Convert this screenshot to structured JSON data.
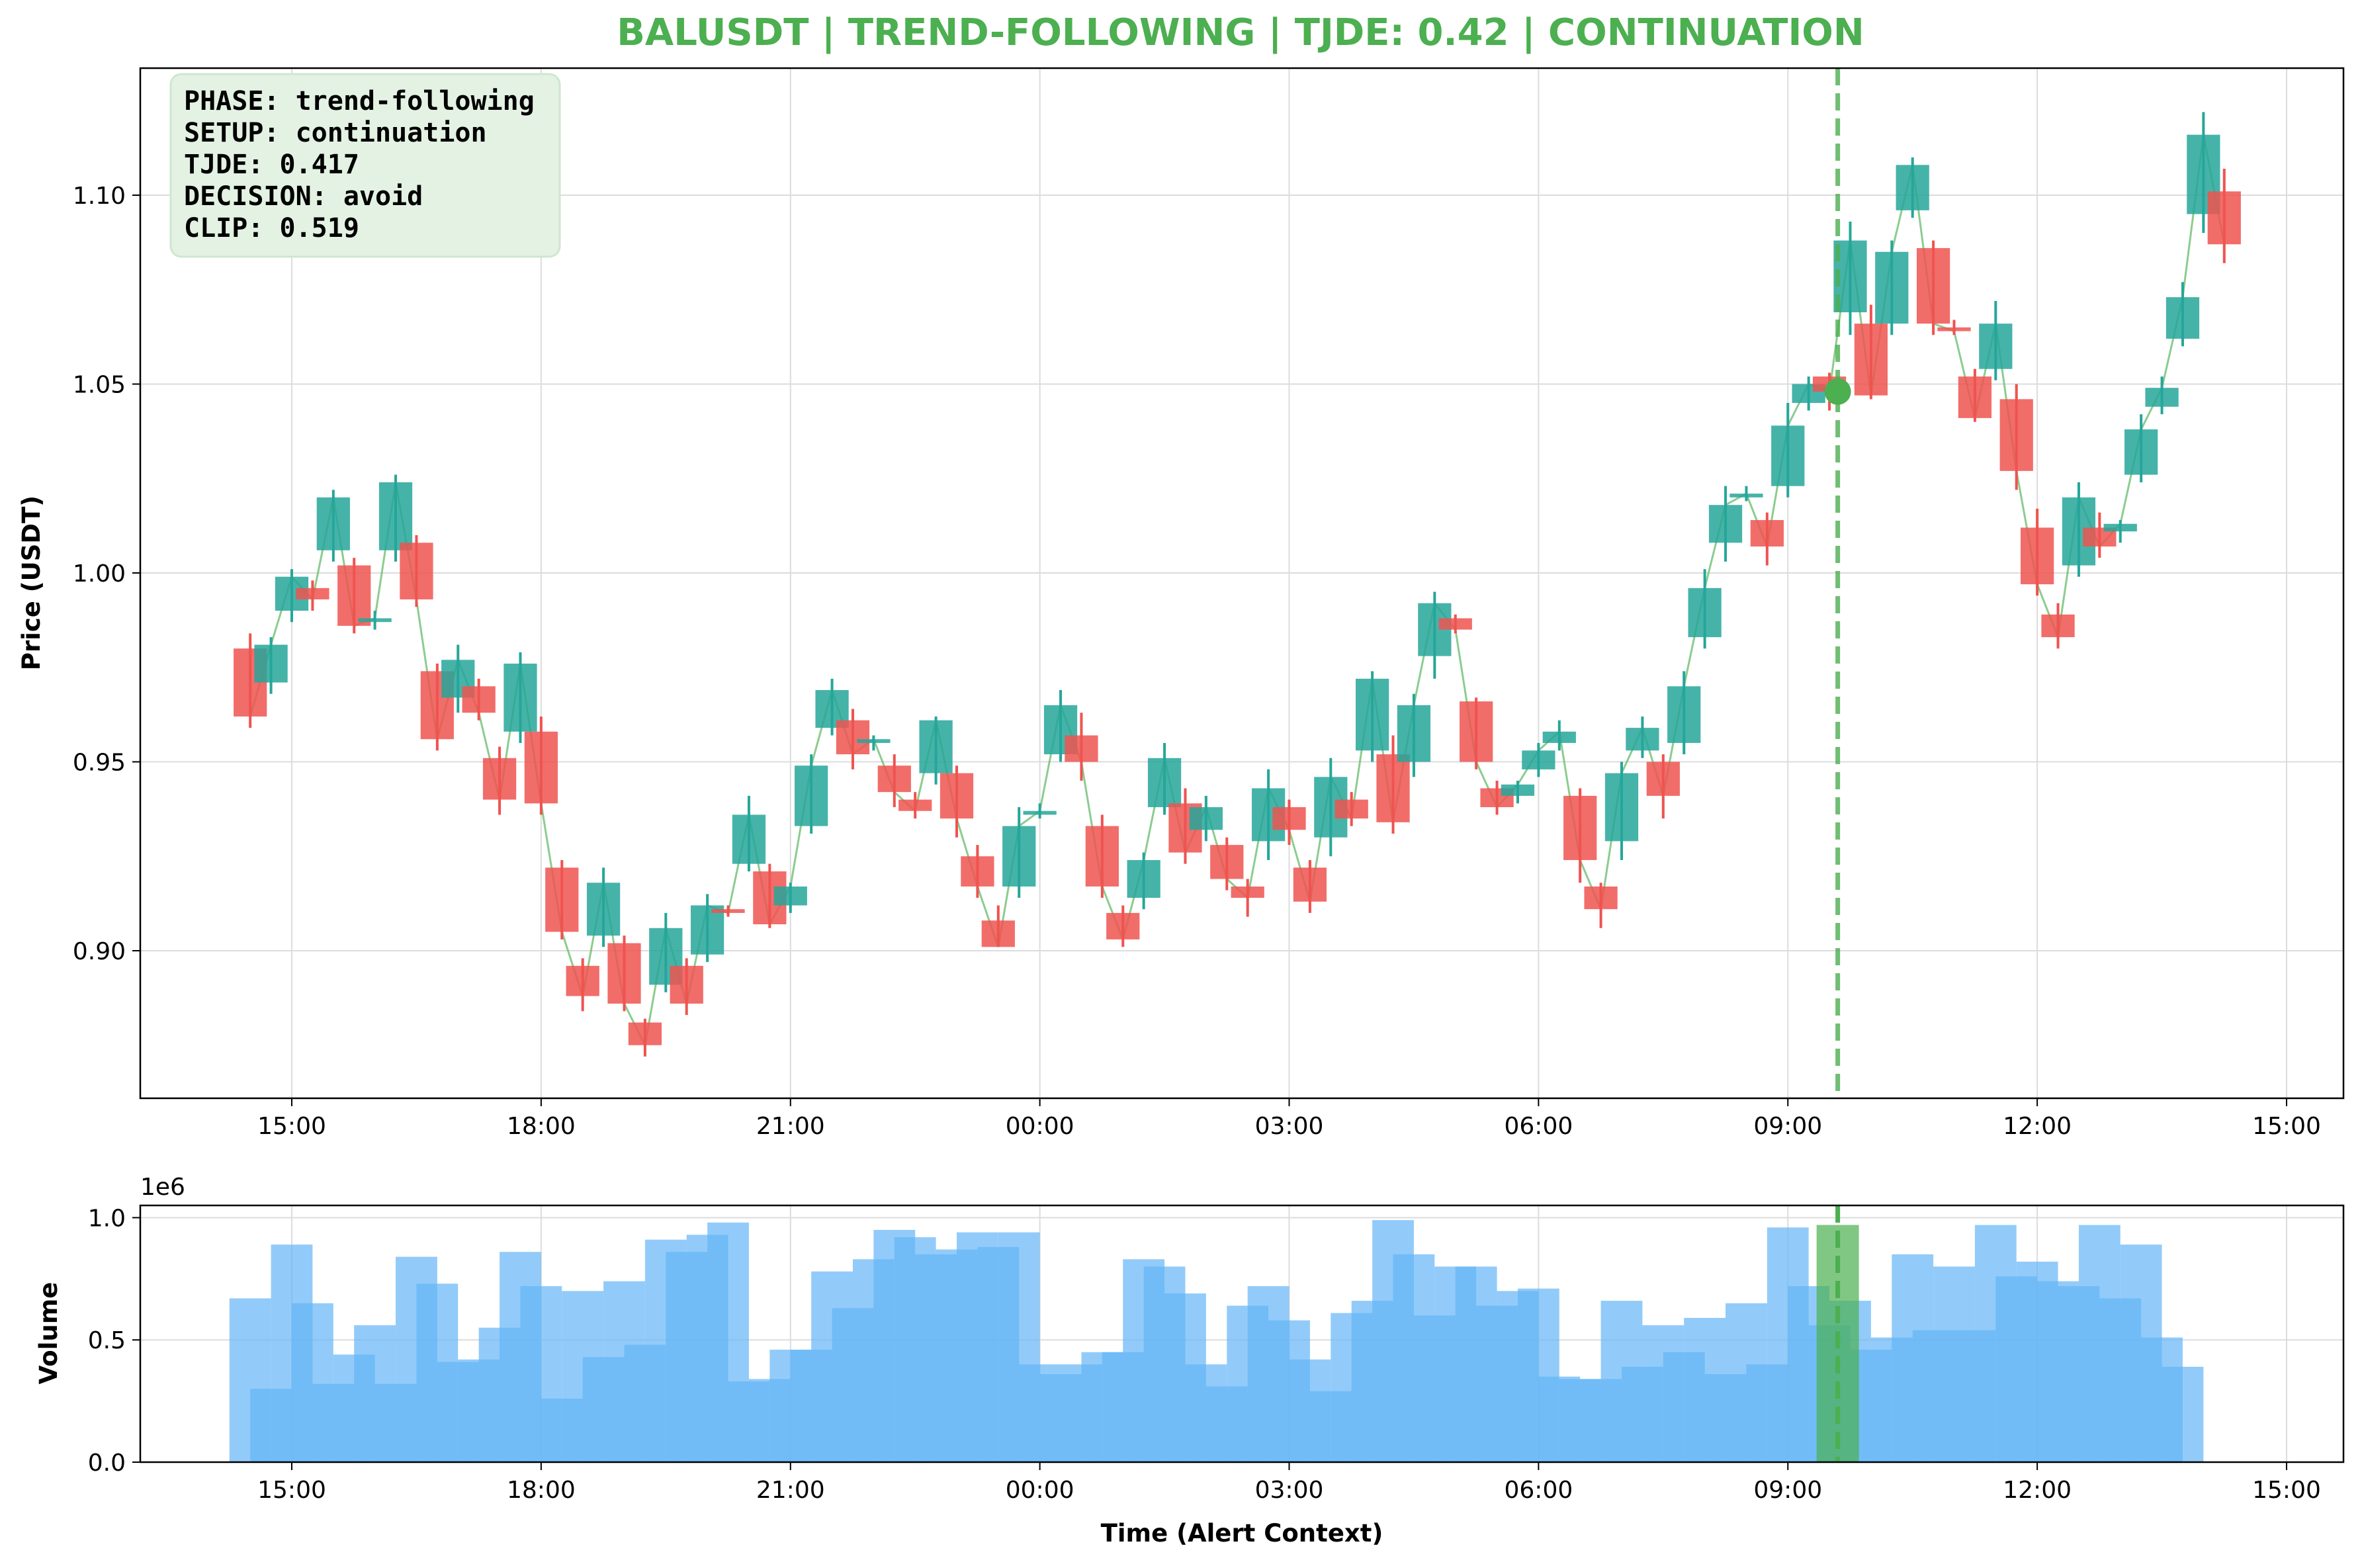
{
  "chart_data": [
    {
      "type": "candlestick",
      "title": "BALUSDT | TREND-FOLLOWING | TJDE: 0.42 | CONTINUATION",
      "title_color": "#4caf50",
      "ylabel": "Price (USDT)",
      "xlabel": "",
      "ylim": [
        0.86,
        1.133
      ],
      "yticks": [
        "0.90",
        "0.95",
        "1.00",
        "1.05",
        "1.10"
      ],
      "xticks": [
        "15:00",
        "18:00",
        "21:00",
        "00:00",
        "03:00",
        "06:00",
        "09:00",
        "12:00",
        "15:00"
      ],
      "grid": true,
      "up_color": "#26a69a",
      "down_color": "#ef5350",
      "close_line_color": "#66bb6a",
      "info_box": {
        "position": "top-left",
        "lines": [
          "PHASE: trend-following",
          "SETUP: continuation",
          "TJDE: 0.417",
          "DECISION: avoid",
          "CLIP: 0.519"
        ]
      },
      "alert": {
        "time": "09:36",
        "price": 1.048,
        "color": "#4caf50"
      },
      "candles": [
        {
          "time": "14:30",
          "open": 0.98,
          "high": 0.984,
          "low": 0.959,
          "close": 0.962
        },
        {
          "time": "14:45",
          "open": 0.971,
          "high": 0.983,
          "low": 0.968,
          "close": 0.981
        },
        {
          "time": "15:00",
          "open": 0.99,
          "high": 1.001,
          "low": 0.987,
          "close": 0.999
        },
        {
          "time": "15:15",
          "open": 0.996,
          "high": 0.998,
          "low": 0.99,
          "close": 0.993
        },
        {
          "time": "15:30",
          "open": 1.006,
          "high": 1.022,
          "low": 1.003,
          "close": 1.02
        },
        {
          "time": "15:45",
          "open": 1.002,
          "high": 1.004,
          "low": 0.984,
          "close": 0.986
        },
        {
          "time": "16:00",
          "open": 0.987,
          "high": 0.99,
          "low": 0.985,
          "close": 0.988
        },
        {
          "time": "16:15",
          "open": 1.006,
          "high": 1.026,
          "low": 1.003,
          "close": 1.024
        },
        {
          "time": "16:30",
          "open": 1.008,
          "high": 1.01,
          "low": 0.991,
          "close": 0.993
        },
        {
          "time": "16:45",
          "open": 0.974,
          "high": 0.976,
          "low": 0.953,
          "close": 0.956
        },
        {
          "time": "17:00",
          "open": 0.967,
          "high": 0.981,
          "low": 0.963,
          "close": 0.977
        },
        {
          "time": "17:15",
          "open": 0.97,
          "high": 0.972,
          "low": 0.961,
          "close": 0.963
        },
        {
          "time": "17:30",
          "open": 0.951,
          "high": 0.954,
          "low": 0.936,
          "close": 0.94
        },
        {
          "time": "17:45",
          "open": 0.958,
          "high": 0.979,
          "low": 0.955,
          "close": 0.976
        },
        {
          "time": "18:00",
          "open": 0.958,
          "high": 0.962,
          "low": 0.936,
          "close": 0.939
        },
        {
          "time": "18:15",
          "open": 0.922,
          "high": 0.924,
          "low": 0.903,
          "close": 0.905
        },
        {
          "time": "18:30",
          "open": 0.896,
          "high": 0.898,
          "low": 0.884,
          "close": 0.888
        },
        {
          "time": "18:45",
          "open": 0.904,
          "high": 0.922,
          "low": 0.901,
          "close": 0.918
        },
        {
          "time": "19:00",
          "open": 0.902,
          "high": 0.904,
          "low": 0.884,
          "close": 0.886
        },
        {
          "time": "19:15",
          "open": 0.881,
          "high": 0.882,
          "low": 0.872,
          "close": 0.875
        },
        {
          "time": "19:30",
          "open": 0.891,
          "high": 0.91,
          "low": 0.889,
          "close": 0.906
        },
        {
          "time": "19:45",
          "open": 0.896,
          "high": 0.898,
          "low": 0.883,
          "close": 0.886
        },
        {
          "time": "20:00",
          "open": 0.899,
          "high": 0.915,
          "low": 0.897,
          "close": 0.912
        },
        {
          "time": "20:15",
          "open": 0.911,
          "high": 0.912,
          "low": 0.909,
          "close": 0.91
        },
        {
          "time": "20:30",
          "open": 0.923,
          "high": 0.941,
          "low": 0.921,
          "close": 0.936
        },
        {
          "time": "20:45",
          "open": 0.921,
          "high": 0.923,
          "low": 0.906,
          "close": 0.907
        },
        {
          "time": "21:00",
          "open": 0.912,
          "high": 0.918,
          "low": 0.91,
          "close": 0.917
        },
        {
          "time": "21:15",
          "open": 0.933,
          "high": 0.952,
          "low": 0.931,
          "close": 0.949
        },
        {
          "time": "21:30",
          "open": 0.959,
          "high": 0.972,
          "low": 0.957,
          "close": 0.969
        },
        {
          "time": "21:45",
          "open": 0.961,
          "high": 0.964,
          "low": 0.948,
          "close": 0.952
        },
        {
          "time": "22:00",
          "open": 0.955,
          "high": 0.957,
          "low": 0.953,
          "close": 0.956
        },
        {
          "time": "22:15",
          "open": 0.949,
          "high": 0.952,
          "low": 0.938,
          "close": 0.942
        },
        {
          "time": "22:30",
          "open": 0.94,
          "high": 0.942,
          "low": 0.935,
          "close": 0.937
        },
        {
          "time": "22:45",
          "open": 0.947,
          "high": 0.962,
          "low": 0.944,
          "close": 0.961
        },
        {
          "time": "23:00",
          "open": 0.947,
          "high": 0.949,
          "low": 0.93,
          "close": 0.935
        },
        {
          "time": "23:15",
          "open": 0.925,
          "high": 0.928,
          "low": 0.914,
          "close": 0.917
        },
        {
          "time": "23:30",
          "open": 0.908,
          "high": 0.912,
          "low": 0.901,
          "close": 0.901
        },
        {
          "time": "23:45",
          "open": 0.917,
          "high": 0.938,
          "low": 0.914,
          "close": 0.933
        },
        {
          "time": "00:00",
          "open": 0.936,
          "high": 0.939,
          "low": 0.935,
          "close": 0.937
        },
        {
          "time": "00:15",
          "open": 0.952,
          "high": 0.969,
          "low": 0.95,
          "close": 0.965
        },
        {
          "time": "00:30",
          "open": 0.957,
          "high": 0.963,
          "low": 0.945,
          "close": 0.95
        },
        {
          "time": "00:45",
          "open": 0.933,
          "high": 0.936,
          "low": 0.914,
          "close": 0.917
        },
        {
          "time": "01:00",
          "open": 0.91,
          "high": 0.912,
          "low": 0.901,
          "close": 0.903
        },
        {
          "time": "01:15",
          "open": 0.914,
          "high": 0.926,
          "low": 0.911,
          "close": 0.924
        },
        {
          "time": "01:30",
          "open": 0.938,
          "high": 0.955,
          "low": 0.936,
          "close": 0.951
        },
        {
          "time": "01:45",
          "open": 0.939,
          "high": 0.943,
          "low": 0.923,
          "close": 0.926
        },
        {
          "time": "02:00",
          "open": 0.932,
          "high": 0.941,
          "low": 0.929,
          "close": 0.938
        },
        {
          "time": "02:15",
          "open": 0.928,
          "high": 0.93,
          "low": 0.916,
          "close": 0.919
        },
        {
          "time": "02:30",
          "open": 0.917,
          "high": 0.919,
          "low": 0.909,
          "close": 0.914
        },
        {
          "time": "02:45",
          "open": 0.929,
          "high": 0.948,
          "low": 0.924,
          "close": 0.943
        },
        {
          "time": "03:00",
          "open": 0.938,
          "high": 0.94,
          "low": 0.928,
          "close": 0.932
        },
        {
          "time": "03:15",
          "open": 0.922,
          "high": 0.924,
          "low": 0.91,
          "close": 0.913
        },
        {
          "time": "03:30",
          "open": 0.93,
          "high": 0.951,
          "low": 0.925,
          "close": 0.946
        },
        {
          "time": "03:45",
          "open": 0.94,
          "high": 0.942,
          "low": 0.933,
          "close": 0.935
        },
        {
          "time": "04:00",
          "open": 0.953,
          "high": 0.974,
          "low": 0.95,
          "close": 0.972
        },
        {
          "time": "04:15",
          "open": 0.952,
          "high": 0.957,
          "low": 0.931,
          "close": 0.934
        },
        {
          "time": "04:30",
          "open": 0.95,
          "high": 0.968,
          "low": 0.946,
          "close": 0.965
        },
        {
          "time": "04:45",
          "open": 0.978,
          "high": 0.995,
          "low": 0.972,
          "close": 0.992
        },
        {
          "time": "05:00",
          "open": 0.988,
          "high": 0.989,
          "low": 0.984,
          "close": 0.985
        },
        {
          "time": "05:15",
          "open": 0.966,
          "high": 0.967,
          "low": 0.948,
          "close": 0.95
        },
        {
          "time": "05:30",
          "open": 0.943,
          "high": 0.945,
          "low": 0.936,
          "close": 0.938
        },
        {
          "time": "05:45",
          "open": 0.941,
          "high": 0.945,
          "low": 0.939,
          "close": 0.944
        },
        {
          "time": "06:00",
          "open": 0.948,
          "high": 0.955,
          "low": 0.946,
          "close": 0.953
        },
        {
          "time": "06:15",
          "open": 0.955,
          "high": 0.961,
          "low": 0.953,
          "close": 0.958
        },
        {
          "time": "06:30",
          "open": 0.941,
          "high": 0.943,
          "low": 0.918,
          "close": 0.924
        },
        {
          "time": "06:45",
          "open": 0.917,
          "high": 0.918,
          "low": 0.906,
          "close": 0.911
        },
        {
          "time": "07:00",
          "open": 0.929,
          "high": 0.95,
          "low": 0.924,
          "close": 0.947
        },
        {
          "time": "07:15",
          "open": 0.953,
          "high": 0.962,
          "low": 0.951,
          "close": 0.959
        },
        {
          "time": "07:30",
          "open": 0.95,
          "high": 0.952,
          "low": 0.935,
          "close": 0.941
        },
        {
          "time": "07:45",
          "open": 0.955,
          "high": 0.974,
          "low": 0.952,
          "close": 0.97
        },
        {
          "time": "08:00",
          "open": 0.983,
          "high": 1.001,
          "low": 0.98,
          "close": 0.996
        },
        {
          "time": "08:15",
          "open": 1.008,
          "high": 1.023,
          "low": 1.003,
          "close": 1.018
        },
        {
          "time": "08:30",
          "open": 1.02,
          "high": 1.023,
          "low": 1.019,
          "close": 1.021
        },
        {
          "time": "08:45",
          "open": 1.014,
          "high": 1.016,
          "low": 1.002,
          "close": 1.007
        },
        {
          "time": "09:00",
          "open": 1.023,
          "high": 1.045,
          "low": 1.02,
          "close": 1.039
        },
        {
          "time": "09:15",
          "open": 1.045,
          "high": 1.052,
          "low": 1.043,
          "close": 1.05
        },
        {
          "time": "09:30",
          "open": 1.052,
          "high": 1.053,
          "low": 1.043,
          "close": 1.048
        },
        {
          "time": "09:45",
          "open": 1.069,
          "high": 1.093,
          "low": 1.063,
          "close": 1.088
        },
        {
          "time": "10:00",
          "open": 1.066,
          "high": 1.071,
          "low": 1.046,
          "close": 1.047
        },
        {
          "time": "10:15",
          "open": 1.066,
          "high": 1.088,
          "low": 1.063,
          "close": 1.085
        },
        {
          "time": "10:30",
          "open": 1.096,
          "high": 1.11,
          "low": 1.094,
          "close": 1.108
        },
        {
          "time": "10:45",
          "open": 1.086,
          "high": 1.088,
          "low": 1.063,
          "close": 1.066
        },
        {
          "time": "11:00",
          "open": 1.065,
          "high": 1.067,
          "low": 1.063,
          "close": 1.064
        },
        {
          "time": "11:15",
          "open": 1.052,
          "high": 1.054,
          "low": 1.04,
          "close": 1.041
        },
        {
          "time": "11:30",
          "open": 1.054,
          "high": 1.072,
          "low": 1.051,
          "close": 1.066
        },
        {
          "time": "11:45",
          "open": 1.046,
          "high": 1.05,
          "low": 1.022,
          "close": 1.027
        },
        {
          "time": "12:00",
          "open": 1.012,
          "high": 1.017,
          "low": 0.994,
          "close": 0.997
        },
        {
          "time": "12:15",
          "open": 0.989,
          "high": 0.992,
          "low": 0.98,
          "close": 0.983
        },
        {
          "time": "12:30",
          "open": 1.002,
          "high": 1.024,
          "low": 0.999,
          "close": 1.02
        },
        {
          "time": "12:45",
          "open": 1.012,
          "high": 1.016,
          "low": 1.004,
          "close": 1.007
        },
        {
          "time": "13:00",
          "open": 1.011,
          "high": 1.014,
          "low": 1.008,
          "close": 1.013
        },
        {
          "time": "13:15",
          "open": 1.026,
          "high": 1.042,
          "low": 1.024,
          "close": 1.038
        },
        {
          "time": "13:30",
          "open": 1.044,
          "high": 1.052,
          "low": 1.042,
          "close": 1.049
        },
        {
          "time": "13:45",
          "open": 1.062,
          "high": 1.077,
          "low": 1.06,
          "close": 1.073
        },
        {
          "time": "14:00",
          "open": 1.095,
          "high": 1.122,
          "low": 1.09,
          "close": 1.116
        },
        {
          "time": "14:15",
          "open": 1.101,
          "high": 1.107,
          "low": 1.082,
          "close": 1.087
        }
      ]
    },
    {
      "type": "bar",
      "title": "",
      "xlabel": "Time (Alert Context)",
      "ylabel": "Volume",
      "offset_label": "1e6",
      "ylim": [
        0,
        1.05
      ],
      "yticks": [
        "0.0",
        "0.5",
        "1.0"
      ],
      "xticks": [
        "15:00",
        "18:00",
        "21:00",
        "00:00",
        "03:00",
        "06:00",
        "09:00",
        "12:00",
        "15:00"
      ],
      "grid": true,
      "bar_color": "#64b5f6",
      "alert_bar_color": "#4caf50",
      "alert_time": "09:36",
      "series": [
        {
          "name": "",
          "values": [
            0.67,
            0.3,
            0.89,
            0.65,
            0.32,
            0.44,
            0.56,
            0.32,
            0.84,
            0.73,
            0.41,
            0.42,
            0.55,
            0.86,
            0.72,
            0.26,
            0.7,
            0.43,
            0.74,
            0.48,
            0.91,
            0.86,
            0.93,
            0.98,
            0.33,
            0.34,
            0.46,
            0.46,
            0.78,
            0.63,
            0.83,
            0.95,
            0.92,
            0.85,
            0.87,
            0.94,
            0.88,
            0.94,
            0.4,
            0.36,
            0.4,
            0.45,
            0.45,
            0.83,
            0.8,
            0.69,
            0.4,
            0.31,
            0.64,
            0.72,
            0.58,
            0.42,
            0.29,
            0.61,
            0.66,
            0.99,
            0.85,
            0.6,
            0.8,
            0.8,
            0.64,
            0.7,
            0.71,
            0.35,
            0.34,
            0.34,
            0.66,
            0.39,
            0.56,
            0.45,
            0.59,
            0.36,
            0.65,
            0.4,
            0.96,
            0.72,
            0.56,
            0.66,
            0.46,
            0.51,
            0.85,
            0.54,
            0.8,
            0.54,
            0.97,
            0.76,
            0.82,
            0.74,
            0.72,
            0.97,
            0.67,
            0.89,
            0.51,
            0.39
          ]
        }
      ]
    }
  ]
}
